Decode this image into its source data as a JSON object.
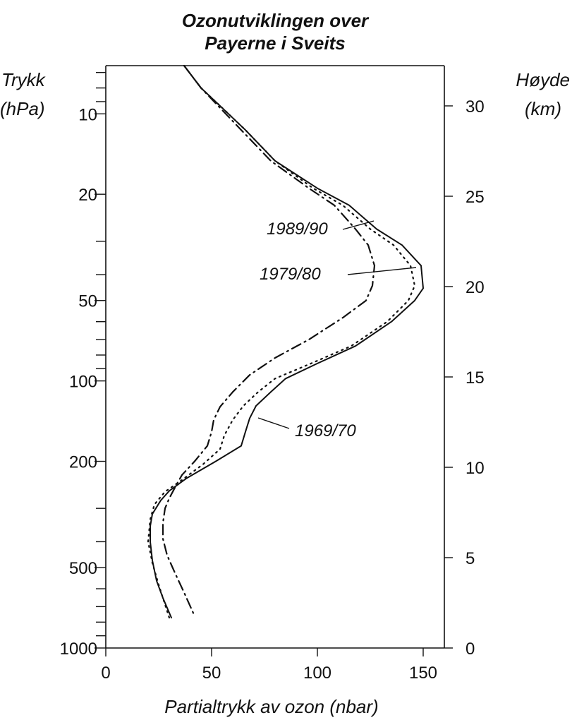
{
  "chart_data": {
    "type": "line",
    "title_lines": [
      "Ozonutviklingen over",
      "Payerne i Sveits"
    ],
    "xlabel": "Partialtrykk av ozon (nbar)",
    "ylabel_left": [
      "Trykk",
      "(hPa)"
    ],
    "ylabel_right": [
      "Høyde",
      "(km)"
    ],
    "x_scale": "linear",
    "xlim": [
      0,
      160
    ],
    "x_ticks": [
      0,
      50,
      100,
      150
    ],
    "y_scale": "log",
    "y_inverted": true,
    "ylim": [
      1000,
      6.6
    ],
    "y_ticks_labeled": [
      10,
      20,
      50,
      100,
      200,
      500,
      1000
    ],
    "y_ticks_minor": [
      7,
      8,
      9,
      30,
      40,
      60,
      70,
      80,
      90,
      300,
      400,
      600,
      700,
      800,
      900
    ],
    "right_axis_ticks_km": [
      0,
      5,
      10,
      15,
      20,
      25,
      30
    ],
    "grid": false,
    "legend": "inline annotations",
    "series": [
      {
        "name": "1969/70",
        "style": "solid",
        "points": [
          [
            37,
            6.6
          ],
          [
            45,
            8
          ],
          [
            55,
            9.5
          ],
          [
            66,
            11.5
          ],
          [
            80,
            15
          ],
          [
            100,
            19
          ],
          [
            115,
            22
          ],
          [
            128,
            27
          ],
          [
            140,
            31
          ],
          [
            149,
            37
          ],
          [
            150,
            45
          ],
          [
            146,
            50
          ],
          [
            135,
            60
          ],
          [
            118,
            74
          ],
          [
            100,
            86
          ],
          [
            85,
            98
          ],
          [
            78,
            110
          ],
          [
            71,
            124
          ],
          [
            68,
            138
          ],
          [
            66,
            155
          ],
          [
            64,
            175
          ],
          [
            52,
            200
          ],
          [
            38,
            232
          ],
          [
            30,
            258
          ],
          [
            26,
            280
          ],
          [
            22,
            315
          ],
          [
            21,
            350
          ],
          [
            21,
            400
          ],
          [
            22,
            470
          ],
          [
            24,
            560
          ],
          [
            27,
            650
          ],
          [
            31,
            770
          ]
        ]
      },
      {
        "name": "1979/80",
        "style": "dotted",
        "points": [
          [
            37,
            6.6
          ],
          [
            45,
            8
          ],
          [
            55,
            9.5
          ],
          [
            66,
            11.5
          ],
          [
            80,
            15
          ],
          [
            98,
            19
          ],
          [
            112,
            22
          ],
          [
            125,
            27
          ],
          [
            136,
            31
          ],
          [
            144,
            37
          ],
          [
            146,
            44
          ],
          [
            143,
            50
          ],
          [
            133,
            60
          ],
          [
            116,
            74
          ],
          [
            97,
            86
          ],
          [
            80,
            98
          ],
          [
            72,
            110
          ],
          [
            65,
            124
          ],
          [
            60,
            140
          ],
          [
            56,
            160
          ],
          [
            54,
            180
          ],
          [
            46,
            205
          ],
          [
            36,
            235
          ],
          [
            28,
            260
          ],
          [
            23,
            290
          ],
          [
            21,
            330
          ],
          [
            20,
            400
          ],
          [
            22,
            480
          ],
          [
            25,
            580
          ],
          [
            30,
            770
          ]
        ]
      },
      {
        "name": "1989/90",
        "style": "dashdot",
        "points": [
          [
            37,
            6.6
          ],
          [
            45,
            8
          ],
          [
            54,
            9.5
          ],
          [
            64,
            11.5
          ],
          [
            78,
            15
          ],
          [
            96,
            19
          ],
          [
            108,
            22
          ],
          [
            118,
            27
          ],
          [
            124,
            31
          ],
          [
            127,
            37
          ],
          [
            126,
            44
          ],
          [
            123,
            50
          ],
          [
            112,
            58
          ],
          [
            96,
            70
          ],
          [
            80,
            82
          ],
          [
            68,
            95
          ],
          [
            60,
            110
          ],
          [
            54,
            125
          ],
          [
            51,
            140
          ],
          [
            50,
            155
          ],
          [
            48,
            175
          ],
          [
            42,
            200
          ],
          [
            36,
            225
          ],
          [
            33,
            248
          ],
          [
            30,
            275
          ],
          [
            28,
            300
          ],
          [
            27,
            340
          ],
          [
            27,
            390
          ],
          [
            29,
            450
          ],
          [
            33,
            530
          ],
          [
            37,
            620
          ],
          [
            42,
            760
          ]
        ]
      }
    ],
    "annotations": [
      {
        "text": "1989/90",
        "series": "1989/90"
      },
      {
        "text": "1979/80",
        "series": "1979/80"
      },
      {
        "text": "1969/70",
        "series": "1969/70"
      }
    ]
  }
}
